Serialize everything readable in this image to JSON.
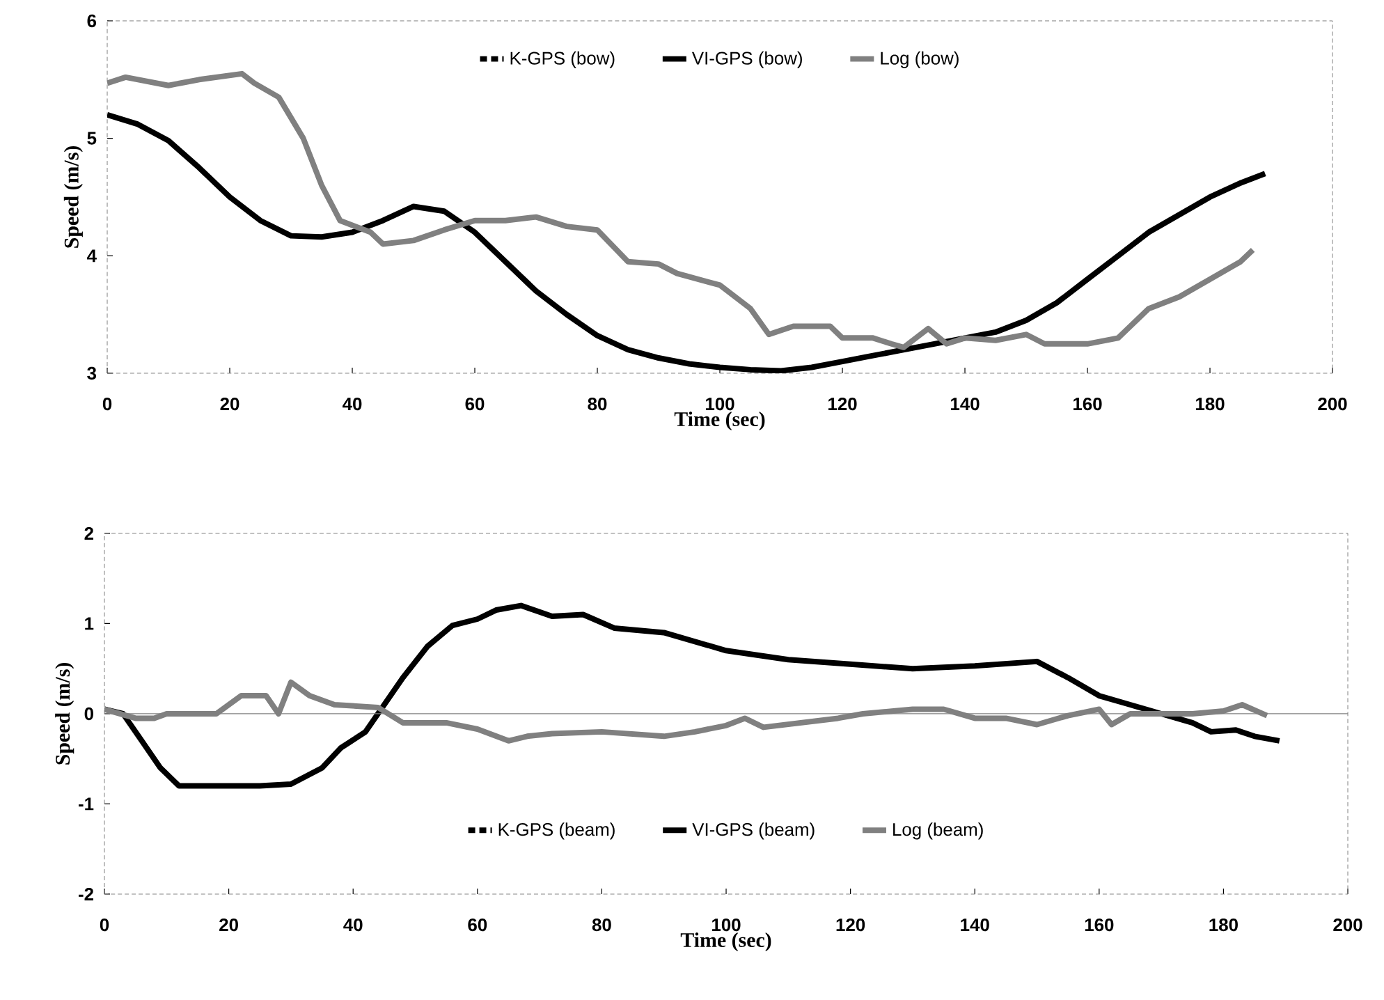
{
  "chart_data": [
    {
      "type": "line",
      "xlabel": "Time (sec)",
      "ylabel": "Speed (m/s)",
      "xlim": [
        0,
        200
      ],
      "ylim": [
        3,
        6
      ],
      "xticks": [
        0,
        20,
        40,
        60,
        80,
        100,
        120,
        140,
        160,
        180,
        200
      ],
      "yticks": [
        3,
        4,
        5,
        6
      ],
      "legend": "top",
      "marker": "none",
      "grid": false,
      "series": [
        {
          "name": "K-GPS (bow)",
          "color": "#000000",
          "line_style": "dashed"
        },
        {
          "name": "VI-GPS (bow)",
          "color": "#000000",
          "line_style": "solid",
          "x": [
            0,
            5,
            10,
            15,
            20,
            25,
            30,
            35,
            40,
            45,
            50,
            55,
            60,
            65,
            70,
            75,
            80,
            85,
            90,
            95,
            100,
            105,
            110,
            115,
            120,
            125,
            130,
            135,
            140,
            145,
            150,
            155,
            160,
            165,
            170,
            175,
            180,
            185,
            189
          ],
          "values": [
            5.2,
            5.12,
            4.98,
            4.75,
            4.5,
            4.3,
            4.17,
            4.16,
            4.2,
            4.3,
            4.42,
            4.38,
            4.2,
            3.95,
            3.7,
            3.5,
            3.32,
            3.2,
            3.13,
            3.08,
            3.05,
            3.03,
            3.02,
            3.05,
            3.1,
            3.15,
            3.2,
            3.25,
            3.3,
            3.35,
            3.45,
            3.6,
            3.8,
            4.0,
            4.2,
            4.35,
            4.5,
            4.62,
            4.7
          ]
        },
        {
          "name": "Log (bow)",
          "color": "#808080",
          "line_style": "solid",
          "x": [
            0,
            3,
            10,
            15,
            22,
            24,
            28,
            32,
            35,
            38,
            43,
            45,
            50,
            55,
            60,
            65,
            70,
            75,
            80,
            85,
            90,
            93,
            100,
            105,
            108,
            112,
            118,
            120,
            125,
            128,
            130,
            134,
            137,
            140,
            145,
            150,
            153,
            160,
            165,
            170,
            175,
            180,
            185,
            187
          ],
          "values": [
            5.47,
            5.52,
            5.45,
            5.5,
            5.55,
            5.47,
            5.35,
            5.0,
            4.6,
            4.3,
            4.2,
            4.1,
            4.13,
            4.22,
            4.3,
            4.3,
            4.33,
            4.25,
            4.22,
            3.95,
            3.93,
            3.85,
            3.75,
            3.55,
            3.33,
            3.4,
            3.4,
            3.3,
            3.3,
            3.25,
            3.22,
            3.38,
            3.25,
            3.3,
            3.28,
            3.33,
            3.25,
            3.25,
            3.3,
            3.55,
            3.65,
            3.8,
            3.95,
            4.05
          ]
        }
      ]
    },
    {
      "type": "line",
      "xlabel": "Time (sec)",
      "ylabel": "Speed (m/s)",
      "xlim": [
        0,
        200
      ],
      "ylim": [
        -2,
        2
      ],
      "xticks": [
        0,
        20,
        40,
        60,
        80,
        100,
        120,
        140,
        160,
        180,
        200
      ],
      "yticks": [
        -2,
        -1,
        0,
        1,
        2
      ],
      "legend": "bottom",
      "marker": "none",
      "grid": false,
      "ref_lines": [
        {
          "axis": "y",
          "value": 0,
          "color": "#808080"
        }
      ],
      "series": [
        {
          "name": "K-GPS (beam)",
          "color": "#000000",
          "line_style": "dashed"
        },
        {
          "name": "VI-GPS (beam)",
          "color": "#000000",
          "line_style": "solid",
          "x": [
            0,
            3,
            6,
            9,
            12,
            20,
            25,
            30,
            35,
            38,
            42,
            45,
            48,
            52,
            56,
            60,
            63,
            67,
            72,
            77,
            82,
            90,
            100,
            110,
            120,
            130,
            140,
            150,
            155,
            160,
            165,
            170,
            175,
            178,
            182,
            185,
            189
          ],
          "values": [
            0.05,
            0.0,
            -0.3,
            -0.6,
            -0.8,
            -0.8,
            -0.8,
            -0.78,
            -0.6,
            -0.38,
            -0.2,
            0.1,
            0.4,
            0.75,
            0.98,
            1.05,
            1.15,
            1.2,
            1.08,
            1.1,
            0.95,
            0.9,
            0.7,
            0.6,
            0.55,
            0.5,
            0.53,
            0.58,
            0.4,
            0.2,
            0.1,
            0.0,
            -0.1,
            -0.2,
            -0.18,
            -0.25,
            -0.3
          ]
        },
        {
          "name": "Log (beam)",
          "color": "#808080",
          "line_style": "solid",
          "x": [
            0,
            5,
            8,
            10,
            18,
            22,
            26,
            28,
            30,
            33,
            37,
            44,
            48,
            55,
            60,
            65,
            68,
            72,
            80,
            90,
            95,
            100,
            103,
            106,
            112,
            118,
            122,
            130,
            135,
            140,
            145,
            150,
            155,
            160,
            162,
            165,
            175,
            180,
            183,
            187
          ],
          "values": [
            0.05,
            -0.05,
            -0.05,
            0.0,
            0.0,
            0.2,
            0.2,
            0.0,
            0.35,
            0.2,
            0.1,
            0.07,
            -0.1,
            -0.1,
            -0.17,
            -0.3,
            -0.25,
            -0.22,
            -0.2,
            -0.25,
            -0.2,
            -0.13,
            -0.05,
            -0.15,
            -0.1,
            -0.05,
            0.0,
            0.05,
            0.05,
            -0.05,
            -0.05,
            -0.12,
            -0.02,
            0.05,
            -0.12,
            0.0,
            0.0,
            0.03,
            0.1,
            -0.02
          ]
        }
      ]
    }
  ]
}
